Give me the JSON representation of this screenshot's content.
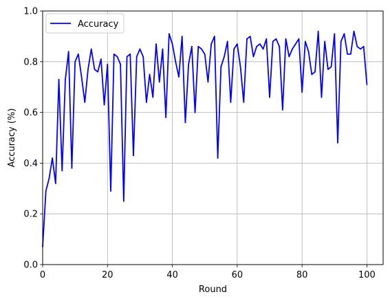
{
  "chart_data": {
    "type": "line",
    "xlabel": "Round",
    "ylabel": "Accuracy (%)",
    "xlim": [
      0,
      105
    ],
    "ylim": [
      0.0,
      1.0
    ],
    "xticks": [
      0,
      20,
      40,
      60,
      80,
      100
    ],
    "yticks": [
      0.0,
      0.2,
      0.4,
      0.6,
      0.8,
      1.0
    ],
    "xtick_labels": [
      "0",
      "20",
      "40",
      "60",
      "80",
      "100"
    ],
    "ytick_labels": [
      "0.0",
      "0.2",
      "0.4",
      "0.6",
      "0.8",
      "1.0"
    ],
    "grid": true,
    "legend_position": "top-left",
    "series": [
      {
        "name": "Accuracy",
        "color": "#0000ff",
        "x": [
          0,
          1,
          2,
          3,
          4,
          5,
          6,
          7,
          8,
          9,
          10,
          11,
          12,
          13,
          14,
          15,
          16,
          17,
          18,
          19,
          20,
          21,
          22,
          23,
          24,
          25,
          26,
          27,
          28,
          29,
          30,
          31,
          32,
          33,
          34,
          35,
          36,
          37,
          38,
          39,
          40,
          41,
          42,
          43,
          44,
          45,
          46,
          47,
          48,
          49,
          50,
          51,
          52,
          53,
          54,
          55,
          56,
          57,
          58,
          59,
          60,
          61,
          62,
          63,
          64,
          65,
          66,
          67,
          68,
          69,
          70,
          71,
          72,
          73,
          74,
          75,
          76,
          77,
          78,
          79,
          80,
          81,
          82,
          83,
          84,
          85,
          86,
          87,
          88,
          89,
          90,
          91,
          92,
          93,
          94,
          95,
          96,
          97,
          98,
          99,
          100
        ],
        "y": [
          0.07,
          0.29,
          0.34,
          0.42,
          0.32,
          0.73,
          0.37,
          0.73,
          0.84,
          0.38,
          0.8,
          0.83,
          0.74,
          0.64,
          0.77,
          0.85,
          0.77,
          0.76,
          0.81,
          0.63,
          0.79,
          0.29,
          0.83,
          0.82,
          0.79,
          0.25,
          0.82,
          0.83,
          0.43,
          0.82,
          0.85,
          0.82,
          0.64,
          0.75,
          0.66,
          0.87,
          0.72,
          0.85,
          0.58,
          0.91,
          0.87,
          0.8,
          0.74,
          0.9,
          0.56,
          0.79,
          0.86,
          0.6,
          0.86,
          0.85,
          0.83,
          0.72,
          0.87,
          0.9,
          0.42,
          0.78,
          0.82,
          0.88,
          0.64,
          0.85,
          0.87,
          0.78,
          0.64,
          0.89,
          0.9,
          0.82,
          0.86,
          0.87,
          0.85,
          0.89,
          0.66,
          0.88,
          0.89,
          0.86,
          0.61,
          0.89,
          0.82,
          0.85,
          0.87,
          0.89,
          0.68,
          0.88,
          0.84,
          0.75,
          0.76,
          0.92,
          0.66,
          0.88,
          0.77,
          0.78,
          0.91,
          0.48,
          0.88,
          0.91,
          0.83,
          0.83,
          0.92,
          0.86,
          0.85,
          0.86,
          0.71
        ]
      }
    ]
  }
}
